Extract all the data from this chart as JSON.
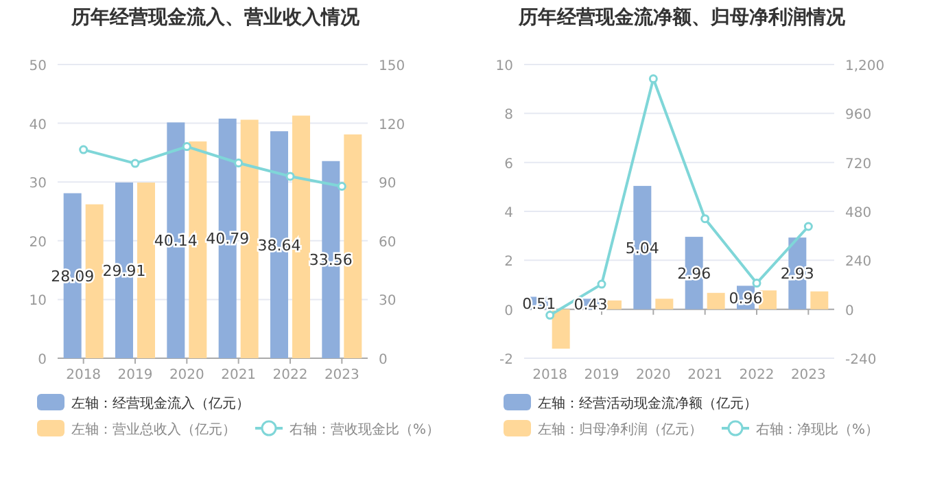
{
  "chart_data": [
    {
      "type": "bar",
      "title": "历年经营现金流入、营业收入情况",
      "categories": [
        "2018",
        "2019",
        "2020",
        "2021",
        "2022",
        "2023"
      ],
      "series": [
        {
          "name": "左轴：经营现金流入（亿元）",
          "color": "#8eaedc",
          "values": [
            28.09,
            29.91,
            40.14,
            40.79,
            38.64,
            33.56
          ],
          "value_labels": [
            "28.09",
            "29.91",
            "40.14",
            "40.79",
            "38.64",
            "33.56"
          ]
        },
        {
          "name": "左轴：营业总收入（亿元）",
          "color": "#ffd899",
          "values": [
            26.2,
            29.9,
            36.9,
            40.6,
            41.3,
            38.1
          ]
        },
        {
          "name": "右轴：营收现金比（%）",
          "type": "line",
          "axis": "y2",
          "color": "#7fd6d8",
          "marker": "circle",
          "values": [
            106.5,
            99.5,
            108.1,
            99.7,
            92.9,
            87.8
          ]
        }
      ],
      "ylim": [
        0,
        50
      ],
      "yticks": [
        0,
        10,
        20,
        30,
        40,
        50
      ],
      "y2lim": [
        0,
        150
      ],
      "y2ticks": [
        0,
        30,
        60,
        90,
        120,
        150
      ],
      "grid": "y",
      "legend": "bottom"
    },
    {
      "type": "bar",
      "title": "历年经营现金流净额、归母净利润情况",
      "categories": [
        "2018",
        "2019",
        "2020",
        "2021",
        "2022",
        "2023"
      ],
      "series": [
        {
          "name": "左轴：经营活动现金流净额（亿元）",
          "color": "#8eaedc",
          "values": [
            0.51,
            0.43,
            5.04,
            2.96,
            0.96,
            2.93
          ],
          "value_labels": [
            "0.51",
            "0.43",
            "5.04",
            "2.96",
            "0.96",
            "2.93"
          ]
        },
        {
          "name": "左轴：归母净利润（亿元）",
          "color": "#ffd899",
          "values": [
            -1.61,
            0.36,
            0.43,
            0.67,
            0.77,
            0.73
          ]
        },
        {
          "name": "右轴：净现比（%）",
          "type": "line",
          "axis": "y2",
          "color": "#7fd6d8",
          "marker": "circle",
          "values": [
            -29,
            123,
            1130,
            444,
            128,
            406
          ]
        }
      ],
      "ylim": [
        -2,
        10
      ],
      "yticks": [
        -2,
        0,
        2,
        4,
        6,
        8,
        10
      ],
      "y2lim": [
        -240,
        1200
      ],
      "y2ticks": [
        -240,
        0,
        240,
        480,
        720,
        960,
        {
          "value": 1200,
          "label": "1,200"
        }
      ],
      "grid": "y",
      "legend": "bottom"
    }
  ]
}
